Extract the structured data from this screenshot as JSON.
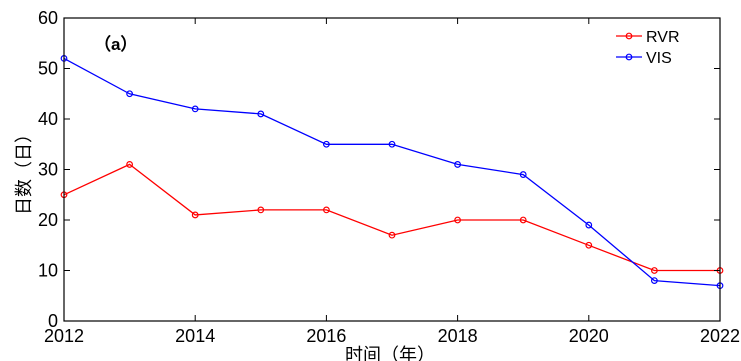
{
  "chart_data": {
    "type": "line",
    "panel_label": "（a）",
    "xlabel": "时间（年）",
    "ylabel": "日数（日）",
    "x": [
      2012,
      2013,
      2014,
      2015,
      2016,
      2017,
      2018,
      2019,
      2020,
      2021,
      2022
    ],
    "xlim": [
      2012,
      2022
    ],
    "ylim": [
      0,
      60
    ],
    "x_ticks": [
      2012,
      2014,
      2016,
      2018,
      2020,
      2022
    ],
    "y_ticks": [
      0,
      10,
      20,
      30,
      40,
      50,
      60
    ],
    "grid": false,
    "legend_position": "top-right",
    "series": [
      {
        "name": "RVR",
        "color": "#ff0000",
        "marker": "circle",
        "values": [
          25,
          31,
          21,
          22,
          22,
          17,
          20,
          20,
          15,
          10,
          10
        ]
      },
      {
        "name": "VIS",
        "color": "#0000ff",
        "marker": "circle",
        "values": [
          52,
          45,
          42,
          41,
          35,
          35,
          31,
          29,
          19,
          8,
          7
        ]
      }
    ]
  }
}
